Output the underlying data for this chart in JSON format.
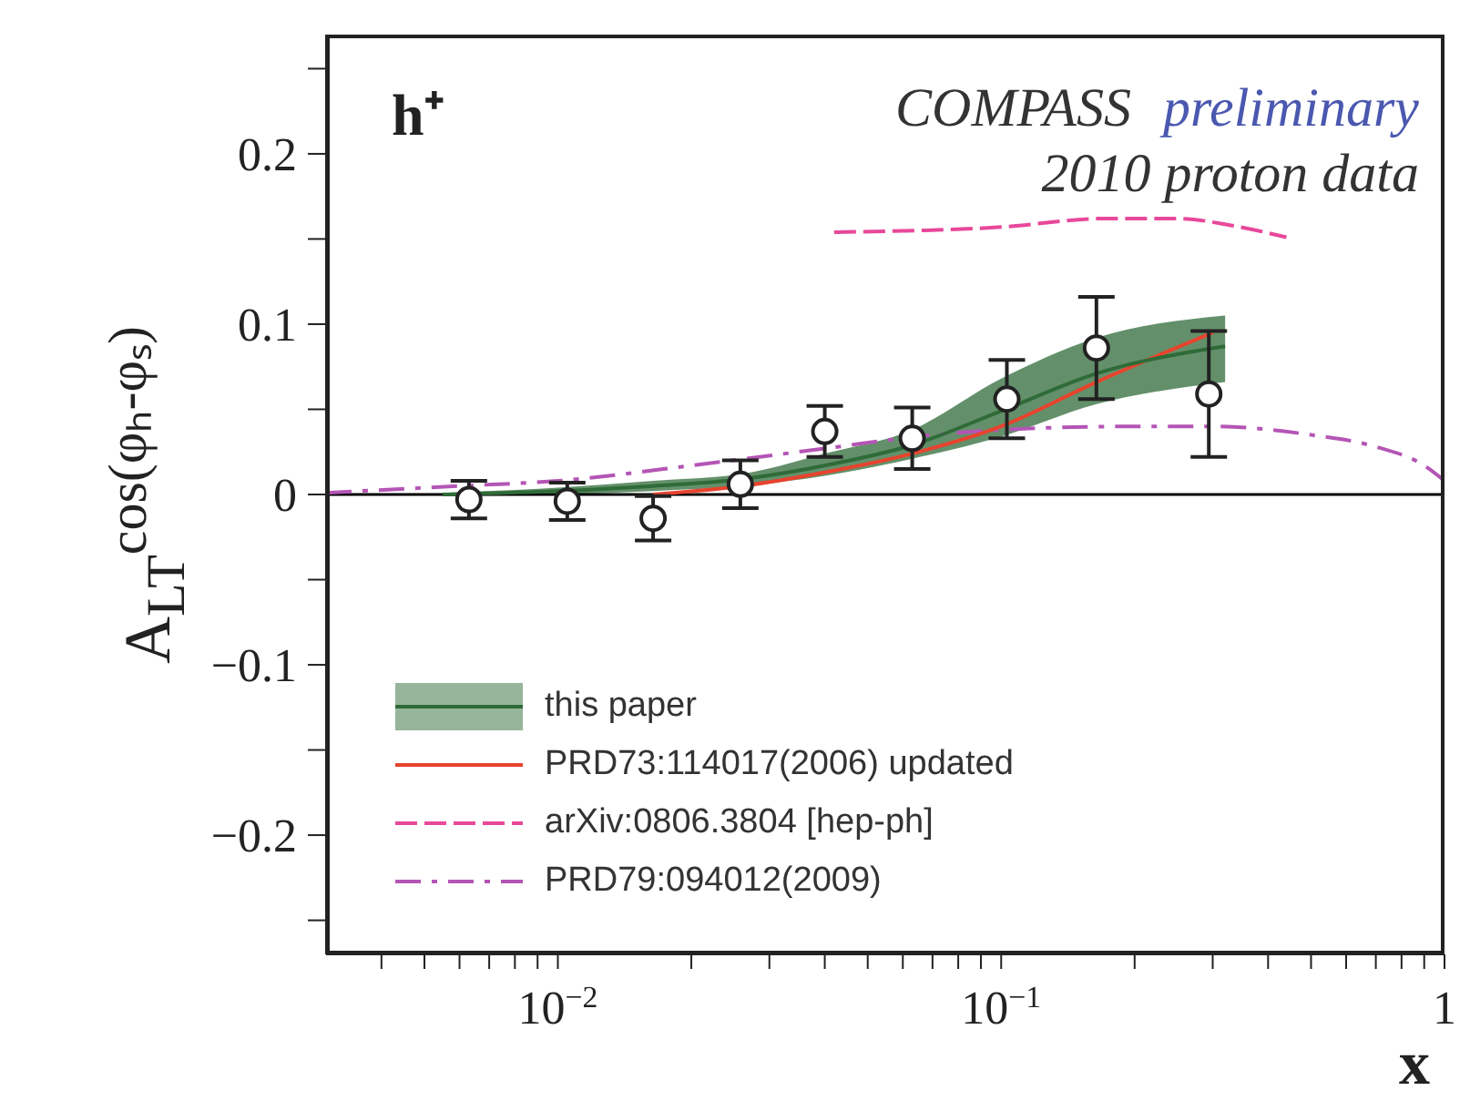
{
  "chart_data": {
    "type": "line",
    "xlabel": "x",
    "ylabel": "A$_{LT}$$^{cos(φₕ-φₛ)}$",
    "log": "x",
    "xlim": [
      0.003,
      1
    ],
    "xticks": [
      {
        "value": 0.004,
        "label": null
      },
      {
        "value": 0.005,
        "label": null
      },
      {
        "value": 0.006,
        "label": null
      },
      {
        "value": 0.007,
        "label": null
      },
      {
        "value": 0.008,
        "label": null
      },
      {
        "value": 0.009,
        "label": null
      },
      {
        "value": 0.01,
        "label": "10$^{−2}$"
      },
      {
        "value": 0.02,
        "label": null
      },
      {
        "value": 0.03,
        "label": null
      },
      {
        "value": 0.04,
        "label": null
      },
      {
        "value": 0.05,
        "label": null
      },
      {
        "value": 0.06,
        "label": null
      },
      {
        "value": 0.07,
        "label": null
      },
      {
        "value": 0.08,
        "label": null
      },
      {
        "value": 0.09,
        "label": null
      },
      {
        "value": 0.1,
        "label": "10$^{−1}$"
      },
      {
        "value": 0.2,
        "label": null
      },
      {
        "value": 0.3,
        "label": null
      },
      {
        "value": 0.4,
        "label": null
      },
      {
        "value": 0.5,
        "label": null
      },
      {
        "value": 0.6,
        "label": null
      },
      {
        "value": 0.7,
        "label": null
      },
      {
        "value": 0.8,
        "label": null
      },
      {
        "value": 0.9,
        "label": null
      },
      {
        "value": 1,
        "label": "1"
      }
    ],
    "ylim": [
      -0.27,
      0.27
    ],
    "yticks": [
      {
        "value": -0.25,
        "label": null
      },
      {
        "value": -0.2,
        "label": "−0.2"
      },
      {
        "value": -0.15,
        "label": null
      },
      {
        "value": -0.1,
        "label": "−0.1"
      },
      {
        "value": -0.05,
        "label": null
      },
      0,
      {
        "value": 0.05,
        "label": null
      },
      0.1,
      {
        "value": 0.15,
        "label": null
      },
      0.2,
      {
        "value": 0.25,
        "label": null
      }
    ],
    "legend": "bottom left",
    "ref_lines": [
      {
        "axis": "y",
        "value": 0,
        "color": "#000000"
      }
    ],
    "annotations": [
      "h⁺",
      "COMPASS",
      "preliminary",
      "2010 proton data"
    ],
    "series": [
      {
        "name": "this paper",
        "color": "#2f6b38",
        "line_style": "solid",
        "x": [
          0.0055,
          0.01,
          0.0164,
          0.026,
          0.04,
          0.063,
          0.1,
          0.164,
          0.32
        ],
        "values": [
          0,
          0.002,
          0.005,
          0.009,
          0.017,
          0.029,
          0.049,
          0.071,
          0.087
        ],
        "lower": [
          -0.001,
          0,
          0.002,
          0.005,
          0.011,
          0.021,
          0.034,
          0.053,
          0.066
        ],
        "upper": [
          0.001,
          0.004,
          0.008,
          0.012,
          0.024,
          0.038,
          0.068,
          0.092,
          0.105
        ]
      },
      {
        "name": "PRD73:114017(2006) updated",
        "color": "#e8432e",
        "line_style": "solid",
        "x": [
          0.0164,
          0.026,
          0.04,
          0.063,
          0.1,
          0.164,
          0.3
        ],
        "values": [
          0,
          0.005,
          0.013,
          0.024,
          0.04,
          0.066,
          0.095
        ]
      },
      {
        "name": "arXiv:0806.3804 [hep-ph]",
        "color": "#e8489a",
        "line_style": "dashed",
        "x": [
          0.042,
          0.1,
          0.17,
          0.25,
          0.33,
          0.44
        ],
        "values": [
          0.154,
          0.157,
          0.162,
          0.162,
          0.158,
          0.151
        ]
      },
      {
        "name": "PRD79:094012(2009)",
        "color": "#b455b5",
        "line_style": "dashdot",
        "x": [
          0.003,
          0.006,
          0.01,
          0.02,
          0.04,
          0.07,
          0.1,
          0.2,
          0.3,
          0.5,
          0.7,
          0.9,
          1
        ],
        "values": [
          0.001,
          0.005,
          0.008,
          0.017,
          0.027,
          0.035,
          0.038,
          0.04,
          0.04,
          0.035,
          0.028,
          0.017,
          0.008
        ]
      },
      {
        "type": "scatter",
        "color": "#222222",
        "marker": "circle",
        "x": [
          0.0063,
          0.0105,
          0.0164,
          0.0258,
          0.04,
          0.063,
          0.103,
          0.164,
          0.294
        ],
        "values": [
          -0.003,
          -0.004,
          -0.014,
          0.006,
          0.037,
          0.033,
          0.056,
          0.086,
          0.059
        ],
        "errors": [
          0.011,
          0.011,
          0.013,
          0.014,
          0.015,
          0.018,
          0.023,
          0.03,
          0.037
        ]
      }
    ]
  }
}
